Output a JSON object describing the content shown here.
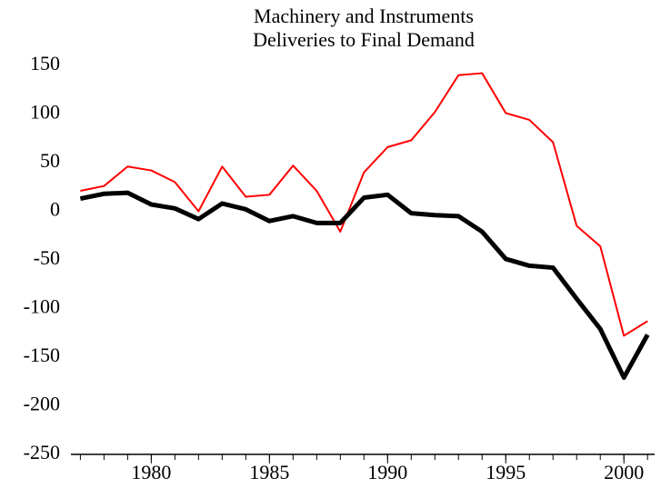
{
  "chart_data": {
    "type": "line",
    "title": [
      "Machinery and Instruments",
      "Deliveries to Final Demand"
    ],
    "x": [
      1977,
      1978,
      1979,
      1980,
      1981,
      1982,
      1983,
      1984,
      1985,
      1986,
      1987,
      1988,
      1989,
      1990,
      1991,
      1992,
      1993,
      1994,
      1995,
      1996,
      1997,
      1998,
      1999,
      2000,
      2001
    ],
    "series": [
      {
        "color": "#ff0000",
        "width": 2,
        "values": [
          21,
          26,
          46,
          42,
          30,
          0,
          46,
          15,
          17,
          47,
          21,
          -21,
          40,
          66,
          73,
          102,
          140,
          142,
          101,
          94,
          71,
          -15,
          -36,
          -128,
          -113
        ]
      },
      {
        "color": "#000000",
        "width": 5,
        "values": [
          13,
          18,
          19,
          7,
          3,
          -8,
          8,
          2,
          -10,
          -5,
          -12,
          -12,
          14,
          17,
          -2,
          -4,
          -5,
          -21,
          -49,
          -56,
          -58,
          -90,
          -121,
          -171,
          -127
        ]
      }
    ],
    "xlim": [
      1976.6,
      2001.3
    ],
    "xticks": [
      1980,
      1985,
      1990,
      1995,
      2000
    ],
    "ylim": [
      -250,
      150
    ],
    "yticks": [
      -250,
      -200,
      -150,
      -100,
      -50,
      0,
      50,
      100,
      150
    ]
  }
}
